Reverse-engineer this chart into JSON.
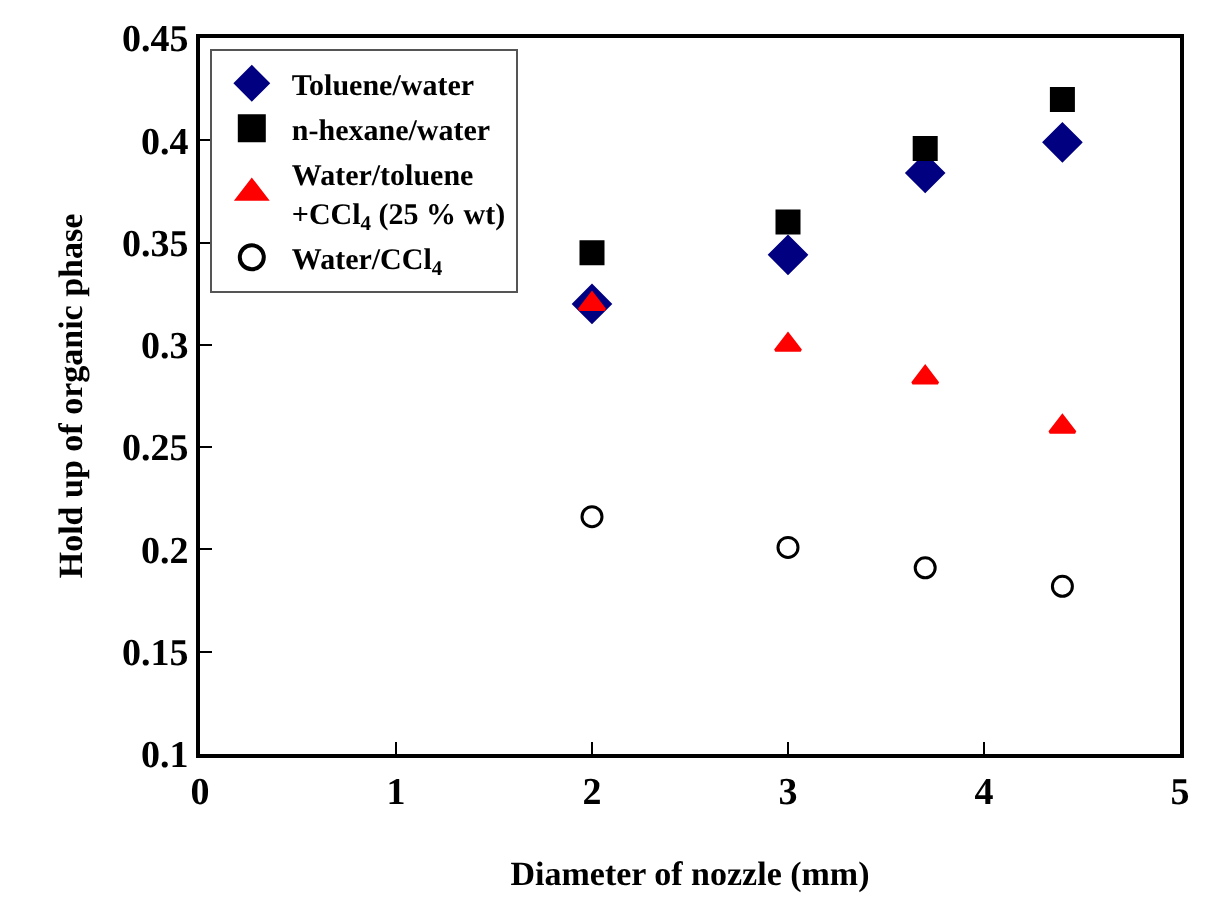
{
  "chart_data": {
    "type": "scatter",
    "xlabel": "Diameter of nozzle (mm)",
    "ylabel": "Hold up of organic phase",
    "xlim": [
      0,
      5
    ],
    "xticks": [
      0,
      1,
      2,
      3,
      4,
      5
    ],
    "ylim": [
      0.1,
      0.45
    ],
    "yticks": [
      {
        "value": 0.1,
        "label": "0.1"
      },
      0.15,
      {
        "value": 0.2,
        "label": "0.2"
      },
      0.25,
      {
        "value": 0.3,
        "label": "0.3"
      },
      0.35,
      {
        "value": 0.4,
        "label": "0.4"
      },
      0.45
    ],
    "legend": "top left",
    "series": [
      {
        "name": "Toluene/water",
        "color": "#000080",
        "marker": "diamond",
        "x": [
          2,
          3,
          3.7,
          4.4
        ],
        "values": [
          0.32,
          0.344,
          0.384,
          0.399
        ]
      },
      {
        "name": "n-hexane/water",
        "color": "#000000",
        "marker": "square",
        "x": [
          2,
          3,
          3.7,
          4.4
        ],
        "values": [
          0.345,
          0.36,
          0.396,
          0.42
        ]
      },
      {
        "name": "Water/toluene\n+CCl$_{4}$ (25 % wt)",
        "color": "#ff0000",
        "marker": "triangle",
        "x": [
          2,
          3,
          3.7,
          4.4
        ],
        "values": [
          0.32,
          0.3,
          0.284,
          0.26
        ]
      },
      {
        "name": "Water/CCl$_{4}$",
        "color": "#000000",
        "marker": "circle",
        "x": [
          2,
          3,
          3.7,
          4.4
        ],
        "values": [
          0.216,
          0.201,
          0.191,
          0.182
        ]
      }
    ]
  }
}
